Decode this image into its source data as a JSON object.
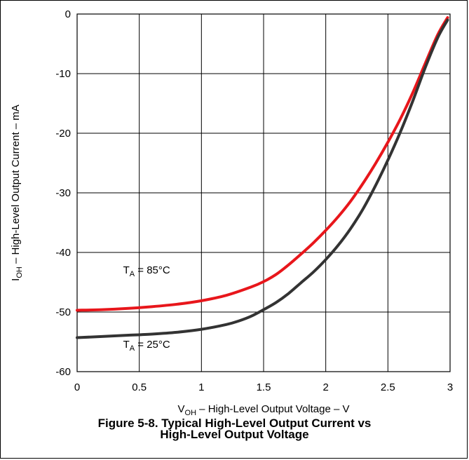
{
  "chart_data": {
    "type": "line",
    "caption": [
      "Figure 5-8. Typical High-Level Output Current vs",
      "High-Level Output Voltage"
    ],
    "xlabel": {
      "sym": "V",
      "sub": "OH",
      "rest": " – High-Level Output Voltage – V"
    },
    "ylabel": {
      "sym": "I",
      "sub": "OH",
      "rest": " – High-Level Output Current – mA"
    },
    "xlim": [
      0,
      3
    ],
    "ylim": [
      -60,
      0
    ],
    "xticks": [
      0,
      0.5,
      1,
      1.5,
      2,
      2.5,
      3
    ],
    "xtick_labels": [
      "0",
      "0.5",
      "1",
      "1.5",
      "2",
      "2.5",
      "3"
    ],
    "yticks": [
      0,
      -10,
      -20,
      -30,
      -40,
      -50,
      -60
    ],
    "ytick_labels": [
      "0",
      "-10",
      "-20",
      "-30",
      "-40",
      "-50",
      "-60"
    ],
    "grid": true,
    "series": [
      {
        "label": {
          "sym": "T",
          "sub": "A",
          "rest": " = 85°C"
        },
        "color": "#e8161b",
        "label_at": [
          0.37,
          -43.5
        ],
        "points": [
          [
            0,
            -49.7
          ],
          [
            0.2,
            -49.6
          ],
          [
            0.4,
            -49.4
          ],
          [
            0.6,
            -49.1
          ],
          [
            0.8,
            -48.7
          ],
          [
            1.0,
            -48.1
          ],
          [
            1.2,
            -47.2
          ],
          [
            1.4,
            -45.8
          ],
          [
            1.5,
            -44.9
          ],
          [
            1.6,
            -43.7
          ],
          [
            1.7,
            -42.1
          ],
          [
            1.8,
            -40.3
          ],
          [
            1.9,
            -38.4
          ],
          [
            2.0,
            -36.3
          ],
          [
            2.1,
            -34.0
          ],
          [
            2.2,
            -31.4
          ],
          [
            2.3,
            -28.4
          ],
          [
            2.4,
            -25.1
          ],
          [
            2.5,
            -21.5
          ],
          [
            2.6,
            -17.6
          ],
          [
            2.7,
            -13.2
          ],
          [
            2.8,
            -8.3
          ],
          [
            2.9,
            -3.5
          ],
          [
            2.98,
            -0.6
          ]
        ]
      },
      {
        "label": {
          "sym": "T",
          "sub": "A",
          "rest": " = 25°C"
        },
        "color": "#333333",
        "label_at": [
          0.37,
          -56.0
        ],
        "points": [
          [
            0,
            -54.3
          ],
          [
            0.2,
            -54.1
          ],
          [
            0.4,
            -53.9
          ],
          [
            0.6,
            -53.7
          ],
          [
            0.8,
            -53.4
          ],
          [
            1.0,
            -52.9
          ],
          [
            1.2,
            -52.1
          ],
          [
            1.3,
            -51.5
          ],
          [
            1.4,
            -50.7
          ],
          [
            1.5,
            -49.6
          ],
          [
            1.6,
            -48.4
          ],
          [
            1.7,
            -46.9
          ],
          [
            1.8,
            -45.1
          ],
          [
            1.9,
            -43.3
          ],
          [
            2.0,
            -41.2
          ],
          [
            2.1,
            -38.8
          ],
          [
            2.2,
            -36.0
          ],
          [
            2.3,
            -32.7
          ],
          [
            2.4,
            -28.8
          ],
          [
            2.5,
            -24.5
          ],
          [
            2.6,
            -19.8
          ],
          [
            2.7,
            -14.6
          ],
          [
            2.8,
            -9.0
          ],
          [
            2.9,
            -4.0
          ],
          [
            2.98,
            -1.0
          ]
        ]
      }
    ]
  }
}
